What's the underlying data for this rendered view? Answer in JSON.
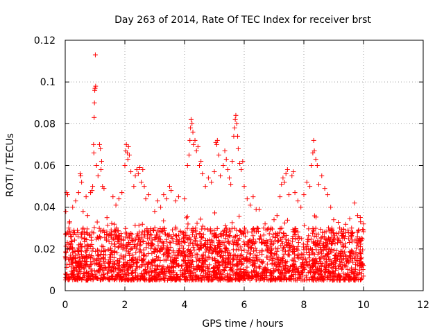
{
  "chart_data": {
    "type": "scatter",
    "title": "Day 263 of 2014, Rate Of TEC Index for receiver brst",
    "xlabel": "GPS time / hours",
    "ylabel": "ROTI / TECUs",
    "xlim": [
      0,
      12
    ],
    "ylim": [
      0,
      0.12
    ],
    "xticks": [
      0,
      2,
      4,
      6,
      8,
      10,
      12
    ],
    "xtick_labels": [
      "0",
      "2",
      "4",
      "6",
      "8",
      "10",
      "12"
    ],
    "yticks": [
      0,
      0.02,
      0.04,
      0.06,
      0.08,
      0.1,
      0.12
    ],
    "ytick_labels": [
      "0",
      "0.02",
      "0.04",
      "0.06",
      "0.08",
      "0.1",
      "0.12"
    ],
    "grid": true,
    "marker": "+",
    "marker_color": "#ff0000",
    "x_data_range": [
      0,
      10
    ],
    "baseline_band": [
      0.005,
      0.03
    ],
    "series": [
      {
        "name": "ROTI",
        "points": [
          [
            0.02,
            0.038
          ],
          [
            0.05,
            0.047
          ],
          [
            0.08,
            0.046
          ],
          [
            0.12,
            0.03
          ],
          [
            0.15,
            0.033
          ],
          [
            0.25,
            0.04
          ],
          [
            0.35,
            0.043
          ],
          [
            0.45,
            0.047
          ],
          [
            0.5,
            0.056
          ],
          [
            0.52,
            0.055
          ],
          [
            0.55,
            0.052
          ],
          [
            0.6,
            0.038
          ],
          [
            0.7,
            0.045
          ],
          [
            0.75,
            0.036
          ],
          [
            0.85,
            0.047
          ],
          [
            0.9,
            0.048
          ],
          [
            0.92,
            0.05
          ],
          [
            0.95,
            0.07
          ],
          [
            0.96,
            0.066
          ],
          [
            0.97,
            0.083
          ],
          [
            0.98,
            0.09
          ],
          [
            0.99,
            0.096
          ],
          [
            1.0,
            0.097
          ],
          [
            1.01,
            0.113
          ],
          [
            1.02,
            0.098
          ],
          [
            1.05,
            0.06
          ],
          [
            1.1,
            0.055
          ],
          [
            1.15,
            0.07
          ],
          [
            1.18,
            0.068
          ],
          [
            1.2,
            0.058
          ],
          [
            1.22,
            0.062
          ],
          [
            1.25,
            0.05
          ],
          [
            1.3,
            0.049
          ],
          [
            1.4,
            0.035
          ],
          [
            1.6,
            0.045
          ],
          [
            1.7,
            0.041
          ],
          [
            1.8,
            0.044
          ],
          [
            1.9,
            0.047
          ],
          [
            2.0,
            0.06
          ],
          [
            2.03,
            0.067
          ],
          [
            2.05,
            0.07
          ],
          [
            2.08,
            0.066
          ],
          [
            2.1,
            0.063
          ],
          [
            2.12,
            0.069
          ],
          [
            2.15,
            0.065
          ],
          [
            2.2,
            0.057
          ],
          [
            2.3,
            0.05
          ],
          [
            2.35,
            0.055
          ],
          [
            2.4,
            0.058
          ],
          [
            2.45,
            0.056
          ],
          [
            2.5,
            0.059
          ],
          [
            2.55,
            0.052
          ],
          [
            2.6,
            0.058
          ],
          [
            2.65,
            0.05
          ],
          [
            2.7,
            0.044
          ],
          [
            2.8,
            0.046
          ],
          [
            3.0,
            0.038
          ],
          [
            3.1,
            0.043
          ],
          [
            3.2,
            0.04
          ],
          [
            3.3,
            0.046
          ],
          [
            3.4,
            0.044
          ],
          [
            3.5,
            0.05
          ],
          [
            3.55,
            0.048
          ],
          [
            3.7,
            0.043
          ],
          [
            3.8,
            0.045
          ],
          [
            4.0,
            0.044
          ],
          [
            4.1,
            0.06
          ],
          [
            4.15,
            0.065
          ],
          [
            4.18,
            0.072
          ],
          [
            4.2,
            0.078
          ],
          [
            4.22,
            0.082
          ],
          [
            4.25,
            0.08
          ],
          [
            4.28,
            0.076
          ],
          [
            4.3,
            0.07
          ],
          [
            4.35,
            0.072
          ],
          [
            4.4,
            0.067
          ],
          [
            4.45,
            0.069
          ],
          [
            4.5,
            0.06
          ],
          [
            4.55,
            0.062
          ],
          [
            4.6,
            0.056
          ],
          [
            4.7,
            0.05
          ],
          [
            4.8,
            0.054
          ],
          [
            4.9,
            0.052
          ],
          [
            5.0,
            0.057
          ],
          [
            5.05,
            0.071
          ],
          [
            5.08,
            0.07
          ],
          [
            5.1,
            0.072
          ],
          [
            5.15,
            0.065
          ],
          [
            5.2,
            0.055
          ],
          [
            5.3,
            0.06
          ],
          [
            5.35,
            0.067
          ],
          [
            5.4,
            0.063
          ],
          [
            5.45,
            0.058
          ],
          [
            5.5,
            0.054
          ],
          [
            5.55,
            0.051
          ],
          [
            5.6,
            0.062
          ],
          [
            5.65,
            0.074
          ],
          [
            5.68,
            0.078
          ],
          [
            5.7,
            0.082
          ],
          [
            5.72,
            0.084
          ],
          [
            5.75,
            0.08
          ],
          [
            5.78,
            0.074
          ],
          [
            5.8,
            0.068
          ],
          [
            5.85,
            0.061
          ],
          [
            5.9,
            0.058
          ],
          [
            5.95,
            0.062
          ],
          [
            6.0,
            0.05
          ],
          [
            6.1,
            0.044
          ],
          [
            6.2,
            0.041
          ],
          [
            6.3,
            0.045
          ],
          [
            6.4,
            0.039
          ],
          [
            6.5,
            0.039
          ],
          [
            6.7,
            0.032
          ],
          [
            6.9,
            0.03
          ],
          [
            7.0,
            0.034
          ],
          [
            7.1,
            0.036
          ],
          [
            7.2,
            0.045
          ],
          [
            7.25,
            0.051
          ],
          [
            7.3,
            0.054
          ],
          [
            7.35,
            0.052
          ],
          [
            7.4,
            0.056
          ],
          [
            7.45,
            0.058
          ],
          [
            7.5,
            0.046
          ],
          [
            7.6,
            0.055
          ],
          [
            7.65,
            0.057
          ],
          [
            7.7,
            0.047
          ],
          [
            7.8,
            0.043
          ],
          [
            7.9,
            0.04
          ],
          [
            8.0,
            0.046
          ],
          [
            8.1,
            0.052
          ],
          [
            8.2,
            0.05
          ],
          [
            8.25,
            0.06
          ],
          [
            8.3,
            0.066
          ],
          [
            8.33,
            0.072
          ],
          [
            8.35,
            0.067
          ],
          [
            8.4,
            0.063
          ],
          [
            8.45,
            0.06
          ],
          [
            8.5,
            0.051
          ],
          [
            8.6,
            0.055
          ],
          [
            8.7,
            0.049
          ],
          [
            8.8,
            0.046
          ],
          [
            8.9,
            0.04
          ],
          [
            9.0,
            0.034
          ],
          [
            9.2,
            0.03
          ],
          [
            9.4,
            0.028
          ],
          [
            9.6,
            0.03
          ],
          [
            9.7,
            0.042
          ],
          [
            9.8,
            0.036
          ],
          [
            9.9,
            0.033
          ],
          [
            10.0,
            0.032
          ]
        ]
      }
    ]
  }
}
